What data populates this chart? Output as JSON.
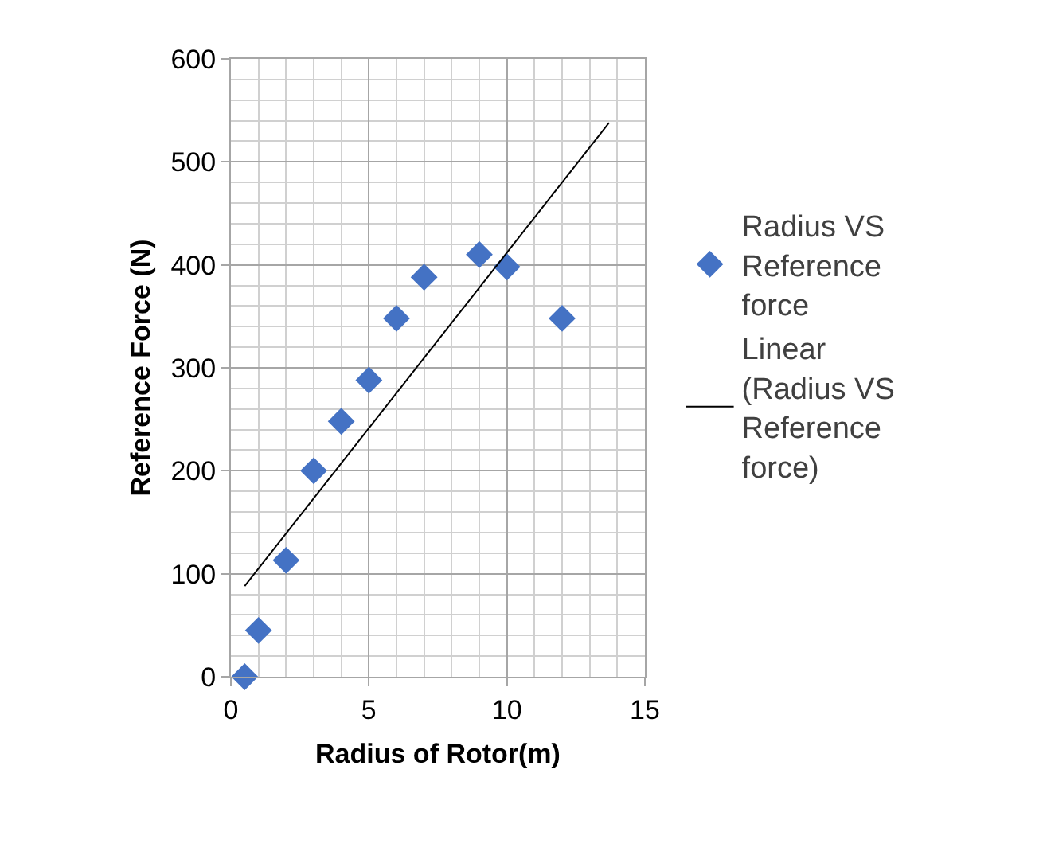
{
  "chart_data": {
    "type": "scatter",
    "xlabel": "Radius of Rotor(m)",
    "ylabel": "Reference Force (N)",
    "xlim": [
      0,
      15
    ],
    "xticks": [
      0,
      5,
      10,
      15
    ],
    "ylim": [
      0,
      600
    ],
    "yticks": [
      0,
      100,
      200,
      300,
      400,
      500,
      600
    ],
    "grid": true,
    "legend": "right",
    "series": [
      {
        "name": "Radius VS Reference force",
        "color": "#4472c4",
        "marker": "diamond",
        "x": [
          0.5,
          1,
          2,
          3,
          4,
          5,
          6,
          7,
          9,
          10,
          12
        ],
        "values": [
          0,
          45,
          113,
          200,
          248,
          288,
          348,
          388,
          410,
          398,
          348
        ]
      },
      {
        "name": "Linear (Radius VS Reference force)",
        "type": "line",
        "color": "#000000",
        "line_style": "solid",
        "marker": "none",
        "x": [
          0.5,
          13.7
        ],
        "values": [
          88,
          538
        ]
      }
    ]
  }
}
